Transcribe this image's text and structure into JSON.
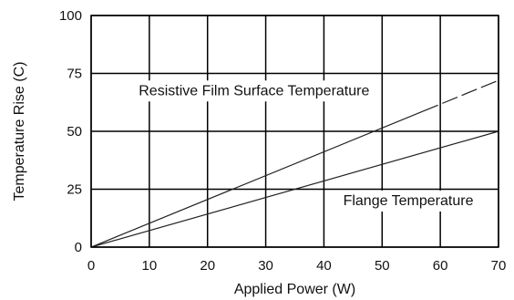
{
  "chart_data": {
    "type": "line",
    "title": "",
    "xlabel": "Applied Power (W)",
    "ylabel": "Temperature Rise (C)",
    "xlim": [
      0,
      70
    ],
    "ylim": [
      0,
      100
    ],
    "x_ticks": [
      "0",
      "10",
      "20",
      "30",
      "40",
      "50",
      "60",
      "70"
    ],
    "y_ticks": [
      "0",
      "25",
      "50",
      "75",
      "100"
    ],
    "grid": true,
    "series": [
      {
        "name": "Resistive Film Surface Temperature",
        "x": [
          0,
          70
        ],
        "y": [
          0,
          72
        ],
        "dashed_from_x": 57
      },
      {
        "name": "Flange Temperature",
        "x": [
          0,
          70
        ],
        "y": [
          0,
          50
        ]
      }
    ],
    "annotations": [
      {
        "text": "Resistive Film Surface Temperature",
        "x": 28,
        "y": 68
      },
      {
        "text": "Flange Temperature",
        "x": 54.5,
        "y": 20.5
      }
    ],
    "colors": {
      "line": "#222222",
      "grid": "#000000",
      "background": "#ffffff"
    }
  }
}
